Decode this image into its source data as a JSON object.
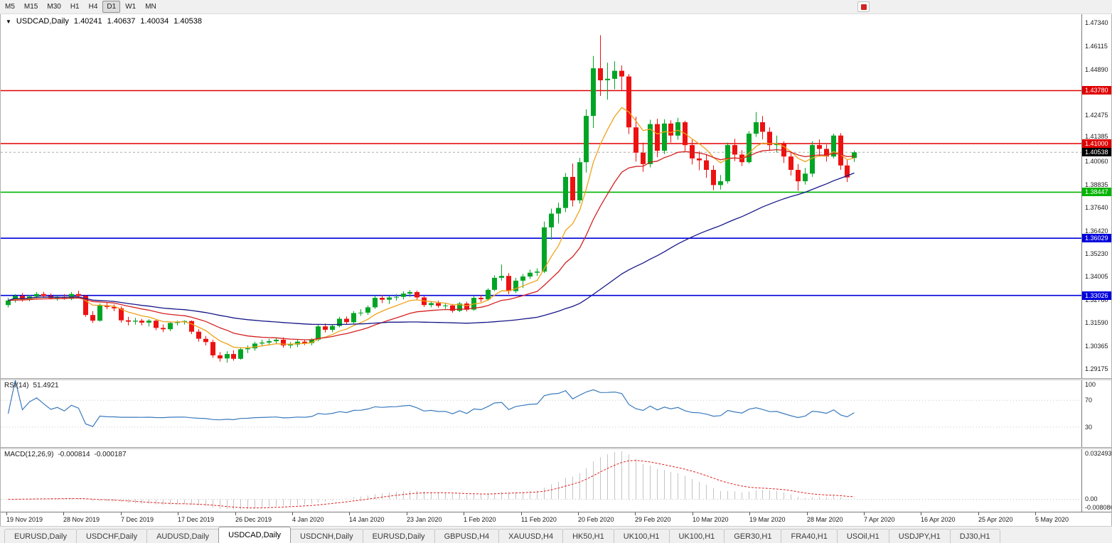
{
  "toolbar": {
    "timeframes": [
      "M5",
      "M15",
      "M30",
      "H1",
      "H4",
      "D1",
      "W1",
      "MN"
    ],
    "active_timeframe": "D1"
  },
  "chart_title": {
    "dropdown_icon": "▼",
    "symbol_period": "USDCAD,Daily",
    "open": "1.40241",
    "high": "1.40637",
    "low": "1.40034",
    "close": "1.40538"
  },
  "indicators": {
    "rsi": {
      "name": "RSI(14)",
      "value": "51.4921"
    },
    "macd": {
      "name": "MACD(12,26,9)",
      "value1": "-0.000814",
      "value2": "-0.000187"
    }
  },
  "tabs": {
    "items": [
      "EURUSD,Daily",
      "USDCHF,Daily",
      "AUDUSD,Daily",
      "USDCAD,Daily",
      "USDCNH,Daily",
      "EURUSD,Daily",
      "GBPUSD,H4",
      "XAUUSD,H4",
      "HK50,H1",
      "UK100,H1",
      "UK100,H1",
      "GER30,H1",
      "FRA40,H1",
      "USOil,H1",
      "USDJPY,H1",
      "DJ30,H1"
    ],
    "active": "USDCAD,Daily"
  },
  "chart_data": {
    "type": "candlestick",
    "symbol": "USDCAD",
    "period": "Daily",
    "price_range": [
      1.28685,
      1.4779
    ],
    "price_axis_labels": [
      "1.47340",
      "1.46115",
      "1.44890",
      "1.42475",
      "1.41385",
      "1.40060",
      "1.38835",
      "1.37640",
      "1.36420",
      "1.35230",
      "1.34005",
      "1.32780",
      "1.31590",
      "1.30365",
      "1.29175"
    ],
    "time_axis_labels": [
      "19 Nov 2019",
      "28 Nov 2019",
      "7 Dec 2019",
      "17 Dec 2019",
      "26 Dec 2019",
      "4 Jan 2020",
      "14 Jan 2020",
      "23 Jan 2020",
      "1 Feb 2020",
      "11 Feb 2020",
      "20 Feb 2020",
      "29 Feb 2020",
      "10 Mar 2020",
      "19 Mar 2020",
      "28 Mar 2020",
      "7 Apr 2020",
      "16 Apr 2020",
      "25 Apr 2020",
      "5 May 2020"
    ],
    "horizontal_lines": [
      {
        "price": 1.4378,
        "label": "1.43780",
        "color": "#e00000",
        "style": "solid"
      },
      {
        "price": 1.41,
        "label": "1.41000",
        "color": "#e00000",
        "style": "solid"
      },
      {
        "price": 1.38447,
        "label": "1.38447",
        "color": "#00b400",
        "style": "solid"
      },
      {
        "price": 1.36029,
        "label": "1.36029",
        "color": "#0000dc",
        "style": "solid"
      },
      {
        "price": 1.33026,
        "label": "1.33026",
        "color": "#0000dc",
        "style": "solid"
      }
    ],
    "current_price": {
      "price": 1.40538,
      "label": "1.40538",
      "line_color": "#aaaaaa",
      "label_bg": "#000000"
    },
    "up_color": "#00a525",
    "down_color": "#ed1111",
    "moving_averages": [
      {
        "type": "ema",
        "period": 8,
        "color": "#efa21a"
      },
      {
        "type": "ema",
        "period": 20,
        "color": "#d42020"
      },
      {
        "type": "sma",
        "period": 55,
        "color": "#161689"
      }
    ],
    "candles": [
      [
        1.3252,
        1.329,
        1.324,
        1.3276
      ],
      [
        1.3276,
        1.331,
        1.3265,
        1.33
      ],
      [
        1.33,
        1.3315,
        1.327,
        1.3281
      ],
      [
        1.3281,
        1.3305,
        1.3272,
        1.3297
      ],
      [
        1.3297,
        1.332,
        1.3285,
        1.331
      ],
      [
        1.331,
        1.3322,
        1.329,
        1.33
      ],
      [
        1.33,
        1.3312,
        1.3282,
        1.3288
      ],
      [
        1.3288,
        1.3302,
        1.3275,
        1.3295
      ],
      [
        1.3295,
        1.331,
        1.328,
        1.3285
      ],
      [
        1.3285,
        1.332,
        1.3278,
        1.331
      ],
      [
        1.331,
        1.3327,
        1.3295,
        1.33
      ],
      [
        1.33,
        1.3305,
        1.319,
        1.32
      ],
      [
        1.32,
        1.322,
        1.3158,
        1.317
      ],
      [
        1.317,
        1.326,
        1.3165,
        1.325
      ],
      [
        1.325,
        1.3265,
        1.323,
        1.3242
      ],
      [
        1.3242,
        1.3255,
        1.322,
        1.3235
      ],
      [
        1.3235,
        1.3245,
        1.316,
        1.3172
      ],
      [
        1.3172,
        1.319,
        1.3145,
        1.3165
      ],
      [
        1.3165,
        1.3185,
        1.315,
        1.317
      ],
      [
        1.317,
        1.318,
        1.3145,
        1.316
      ],
      [
        1.316,
        1.3178,
        1.314,
        1.317
      ],
      [
        1.317,
        1.3175,
        1.312,
        1.3132
      ],
      [
        1.3132,
        1.315,
        1.311,
        1.3125
      ],
      [
        1.3125,
        1.3165,
        1.3115,
        1.3158
      ],
      [
        1.3158,
        1.317,
        1.3145,
        1.3162
      ],
      [
        1.3162,
        1.3172,
        1.315,
        1.3168
      ],
      [
        1.3168,
        1.3172,
        1.31,
        1.3112
      ],
      [
        1.3112,
        1.3125,
        1.306,
        1.3075
      ],
      [
        1.3075,
        1.309,
        1.304,
        1.3058
      ],
      [
        1.3058,
        1.307,
        1.2975,
        1.2988
      ],
      [
        1.2988,
        1.3005,
        1.2955,
        1.2972
      ],
      [
        1.2972,
        1.301,
        1.295,
        1.2995
      ],
      [
        1.2995,
        1.3015,
        1.296,
        1.297
      ],
      [
        1.297,
        1.303,
        1.2965,
        1.302
      ],
      [
        1.302,
        1.304,
        1.3,
        1.3025
      ],
      [
        1.3025,
        1.306,
        1.3012,
        1.305
      ],
      [
        1.305,
        1.307,
        1.3035,
        1.3055
      ],
      [
        1.3055,
        1.3075,
        1.304,
        1.3062
      ],
      [
        1.3062,
        1.308,
        1.3048,
        1.307
      ],
      [
        1.307,
        1.3082,
        1.3028,
        1.304
      ],
      [
        1.304,
        1.3058,
        1.3025,
        1.3045
      ],
      [
        1.3045,
        1.307,
        1.3032,
        1.306
      ],
      [
        1.306,
        1.3072,
        1.3042,
        1.3052
      ],
      [
        1.3052,
        1.3078,
        1.304,
        1.307
      ],
      [
        1.307,
        1.315,
        1.3062,
        1.314
      ],
      [
        1.314,
        1.3155,
        1.3108,
        1.3122
      ],
      [
        1.3122,
        1.315,
        1.311,
        1.3142
      ],
      [
        1.3142,
        1.319,
        1.3135,
        1.318
      ],
      [
        1.318,
        1.3192,
        1.315,
        1.3162
      ],
      [
        1.3162,
        1.322,
        1.3155,
        1.321
      ],
      [
        1.321,
        1.323,
        1.3195,
        1.3212
      ],
      [
        1.3212,
        1.325,
        1.32,
        1.324
      ],
      [
        1.324,
        1.3302,
        1.3232,
        1.329
      ],
      [
        1.329,
        1.3305,
        1.3262,
        1.328
      ],
      [
        1.328,
        1.33,
        1.3258,
        1.3292
      ],
      [
        1.3292,
        1.331,
        1.3275,
        1.3295
      ],
      [
        1.3295,
        1.3325,
        1.3282,
        1.3312
      ],
      [
        1.3312,
        1.333,
        1.3295,
        1.332
      ],
      [
        1.332,
        1.3328,
        1.328,
        1.3292
      ],
      [
        1.3292,
        1.33,
        1.3242,
        1.3252
      ],
      [
        1.3252,
        1.3272,
        1.324,
        1.3262
      ],
      [
        1.3262,
        1.3275,
        1.3238,
        1.3248
      ],
      [
        1.3248,
        1.3262,
        1.3232,
        1.325
      ],
      [
        1.325,
        1.3258,
        1.3212,
        1.3222
      ],
      [
        1.3222,
        1.3268,
        1.3215,
        1.326
      ],
      [
        1.326,
        1.327,
        1.3218,
        1.3228
      ],
      [
        1.3228,
        1.33,
        1.3222,
        1.329
      ],
      [
        1.329,
        1.3305,
        1.3268,
        1.3282
      ],
      [
        1.3282,
        1.334,
        1.3275,
        1.3332
      ],
      [
        1.3332,
        1.3408,
        1.3325,
        1.3395
      ],
      [
        1.3395,
        1.3465,
        1.338,
        1.3405
      ],
      [
        1.3405,
        1.342,
        1.331,
        1.3325
      ],
      [
        1.3325,
        1.3395,
        1.3315,
        1.338
      ],
      [
        1.338,
        1.3415,
        1.3342,
        1.3402
      ],
      [
        1.3402,
        1.3438,
        1.339,
        1.3422
      ],
      [
        1.3422,
        1.3445,
        1.3405,
        1.3428
      ],
      [
        1.3428,
        1.369,
        1.342,
        1.366
      ],
      [
        1.366,
        1.3758,
        1.3595,
        1.3732
      ],
      [
        1.3732,
        1.379,
        1.368,
        1.3762
      ],
      [
        1.3762,
        1.3945,
        1.374,
        1.3925
      ],
      [
        1.3925,
        1.3995,
        1.377,
        1.3802
      ],
      [
        1.3802,
        1.4025,
        1.3785,
        1.4002
      ],
      [
        1.4002,
        1.428,
        1.3948,
        1.4245
      ],
      [
        1.4245,
        1.456,
        1.4182,
        1.4495
      ],
      [
        1.4495,
        1.4669,
        1.435,
        1.4432
      ],
      [
        1.4432,
        1.4525,
        1.433,
        1.444
      ],
      [
        1.444,
        1.4532,
        1.4385,
        1.4482
      ],
      [
        1.4482,
        1.451,
        1.4375,
        1.4452
      ],
      [
        1.4452,
        1.4465,
        1.415,
        1.4185
      ],
      [
        1.4185,
        1.424,
        1.4005,
        1.4052
      ],
      [
        1.4052,
        1.4105,
        1.3952,
        1.3992
      ],
      [
        1.3992,
        1.4225,
        1.3975,
        1.4202
      ],
      [
        1.4202,
        1.423,
        1.4028,
        1.4062
      ],
      [
        1.4062,
        1.4228,
        1.4045,
        1.4205
      ],
      [
        1.4205,
        1.4222,
        1.4105,
        1.4142
      ],
      [
        1.4142,
        1.4235,
        1.412,
        1.4212
      ],
      [
        1.4212,
        1.422,
        1.4062,
        1.4092
      ],
      [
        1.4092,
        1.412,
        1.399,
        1.4022
      ],
      [
        1.4022,
        1.406,
        1.396,
        1.4012
      ],
      [
        1.4012,
        1.4042,
        1.392,
        1.3962
      ],
      [
        1.3962,
        1.3985,
        1.3855,
        1.3882
      ],
      [
        1.3882,
        1.3935,
        1.3858,
        1.3902
      ],
      [
        1.3902,
        1.4105,
        1.389,
        1.4092
      ],
      [
        1.4092,
        1.4125,
        1.4008,
        1.4042
      ],
      [
        1.4042,
        1.4065,
        1.3982,
        1.4002
      ],
      [
        1.4002,
        1.4165,
        1.3995,
        1.4152
      ],
      [
        1.4152,
        1.4265,
        1.4135,
        1.4212
      ],
      [
        1.4212,
        1.4245,
        1.4122,
        1.4162
      ],
      [
        1.4162,
        1.4185,
        1.4062,
        1.4092
      ],
      [
        1.4092,
        1.4142,
        1.4052,
        1.4098
      ],
      [
        1.4098,
        1.4112,
        1.3998,
        1.4032
      ],
      [
        1.4032,
        1.4055,
        1.3932,
        1.3962
      ],
      [
        1.3962,
        1.3992,
        1.3852,
        1.3902
      ],
      [
        1.3902,
        1.3972,
        1.3885,
        1.3942
      ],
      [
        1.3942,
        1.4112,
        1.3925,
        1.4092
      ],
      [
        1.4092,
        1.4122,
        1.4032,
        1.4072
      ],
      [
        1.4072,
        1.4095,
        1.4005,
        1.4032
      ],
      [
        1.4032,
        1.4152,
        1.4022,
        1.4142
      ],
      [
        1.4142,
        1.4155,
        1.3962,
        1.3985
      ],
      [
        1.3985,
        1.4015,
        1.3898,
        1.3922
      ],
      [
        1.40241,
        1.40637,
        1.40034,
        1.40538
      ]
    ],
    "rsi": {
      "period": 14,
      "color": "#3a7abd",
      "levels": [
        70,
        30
      ],
      "axis_labels": [
        "100",
        "70",
        "30"
      ],
      "range": [
        0,
        100
      ]
    },
    "macd": {
      "fast": 12,
      "slow": 26,
      "signal": 9,
      "histogram_color": "#c4c4c4",
      "signal_color": "#e02020",
      "axis_labels": [
        "0.032493",
        "0.00",
        "-0.008086"
      ],
      "range": [
        -0.008086,
        0.032493
      ]
    }
  }
}
